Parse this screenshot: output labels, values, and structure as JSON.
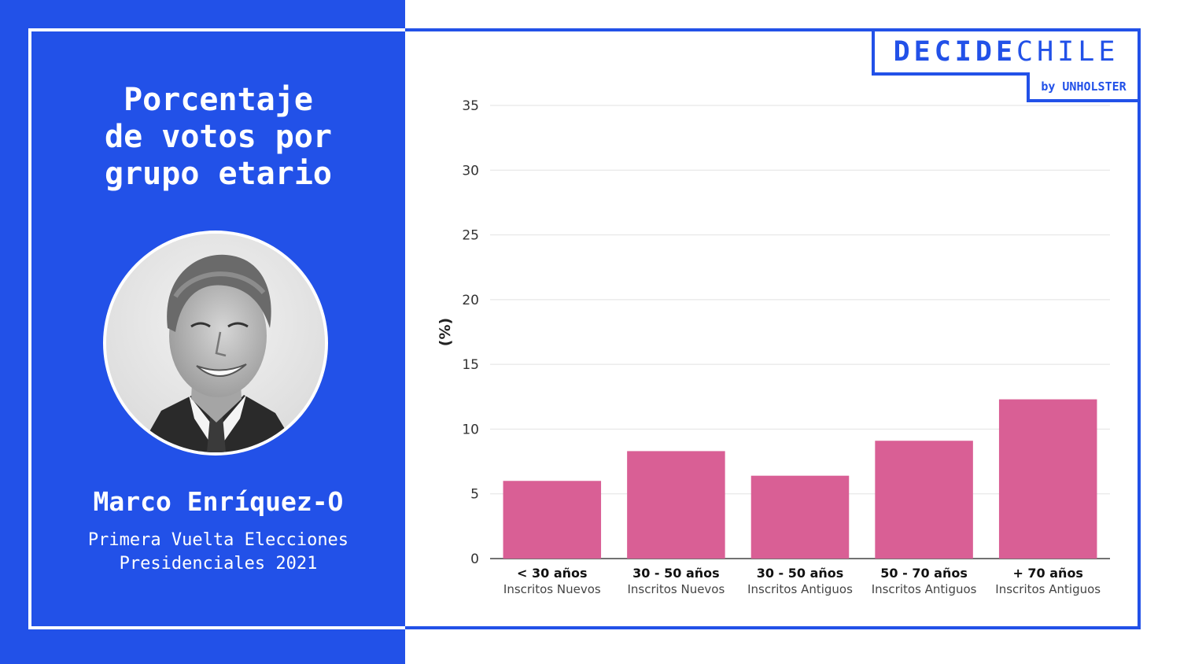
{
  "panel": {
    "title_lines": [
      "Porcentaje",
      "de votos por",
      "grupo etario"
    ],
    "candidate_name": "Marco Enríquez-O",
    "subtitle_lines": [
      "Primera Vuelta Elecciones",
      "Presidenciales 2021"
    ]
  },
  "logo": {
    "main_bold": "DECIDE",
    "main_light": "CHILE",
    "sub": "by UNHOLSTER"
  },
  "colors": {
    "brand_blue": "#2251e8",
    "bar": "#d95f95"
  },
  "chart_data": {
    "type": "bar",
    "ylabel": "(%)",
    "ylim": [
      0,
      35
    ],
    "yticks": [
      0,
      5,
      10,
      15,
      20,
      25,
      30,
      35
    ],
    "grid": true,
    "categories": [
      {
        "label": "< 30 años",
        "sublabel": "Inscritos Nuevos"
      },
      {
        "label": "30 - 50 años",
        "sublabel": "Inscritos Nuevos"
      },
      {
        "label": "30 - 50 años",
        "sublabel": "Inscritos Antiguos"
      },
      {
        "label": "50 - 70 años",
        "sublabel": "Inscritos Antiguos"
      },
      {
        "label": "+ 70 años",
        "sublabel": "Inscritos Antiguos"
      }
    ],
    "values": [
      6.0,
      8.3,
      6.4,
      9.1,
      12.3
    ]
  }
}
